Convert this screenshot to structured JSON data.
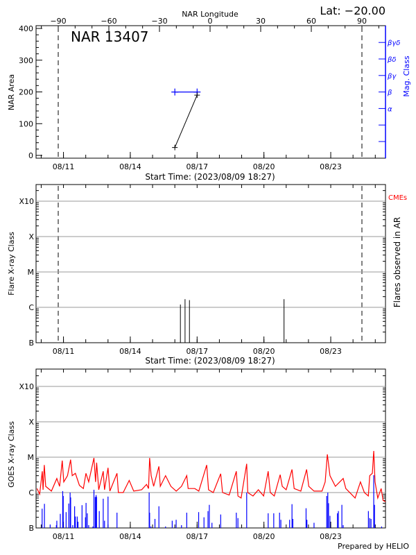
{
  "colors": {
    "axes": "#000000",
    "mag_class": "#0000ff",
    "goes_long": "#ff0000",
    "goes_short": "#0000ff",
    "grid": "#999999",
    "cmes": "#ff0000"
  },
  "header": {
    "latitude_label": "Lat: −20.00",
    "region_label": "NAR 13407"
  },
  "footer": {
    "credit": "Prepared by HELIO"
  },
  "chart_data": [
    {
      "type": "line",
      "id": "nar-area",
      "top_axis_label": "NAR Longitude",
      "top_ticks": [
        -90,
        -60,
        -30,
        0,
        30,
        60,
        90
      ],
      "top_tick_labels": [
        "−90",
        "−60",
        "−30",
        "0",
        "30",
        "60",
        "90"
      ],
      "limb_longitudes": [
        -90,
        90
      ],
      "limb_times": [
        "2023-08-10 19:30",
        "2023-08-24 10:00"
      ],
      "ylabel": "NAR Area",
      "ylim": [
        0,
        400
      ],
      "yticks": [
        0,
        100,
        200,
        300,
        400
      ],
      "ytick_labels": [
        "0",
        "100",
        "200",
        "300",
        "400"
      ],
      "right_axis_label": "Mag. Class",
      "mag_classes": [
        "",
        "",
        "α",
        "β",
        "βγ",
        "βδ",
        "βγδ"
      ],
      "xlabel": "Start Time: (2023/08/09 18:27)",
      "xlim": [
        "2023-08-09 18:27",
        "2023-08-25 11:00"
      ],
      "xticks": [
        "2023-08-11 00:00",
        "2023-08-14 00:00",
        "2023-08-17 00:00",
        "2023-08-20 00:00",
        "2023-08-23 00:00"
      ],
      "xtick_labels": [
        "08/11",
        "08/14",
        "08/17",
        "08/20",
        "08/23"
      ],
      "area_series": [
        {
          "t": "2023-08-16 00:00",
          "area": 25
        },
        {
          "t": "2023-08-17 00:00",
          "area": 190
        }
      ],
      "mag_series": [
        {
          "t": "2023-08-16 00:00",
          "class": "β"
        },
        {
          "t": "2023-08-17 00:00",
          "class": "β"
        }
      ]
    },
    {
      "type": "bar",
      "id": "flares",
      "ylabel": "Flare X-ray Class",
      "right_axis_label": "Flares observed in AR",
      "cme_label": "CMEs",
      "yscale": "log",
      "ylim": [
        1e-07,
        0.002
      ],
      "yticks": [
        1e-07,
        1e-06,
        1e-05,
        0.0001,
        0.001
      ],
      "ytick_labels": [
        "B",
        "C",
        "M",
        "X",
        "X10"
      ],
      "grid": true,
      "xlabel": "Start Time: (2023/08/09 18:27)",
      "xtick_labels": [
        "08/11",
        "08/14",
        "08/17",
        "08/20",
        "08/23"
      ],
      "flares": [
        {
          "t": "2023-08-16 06:00",
          "class": "C1.2",
          "flux": 1.2e-06
        },
        {
          "t": "2023-08-16 11:00",
          "class": "C1.7",
          "flux": 1.7e-06
        },
        {
          "t": "2023-08-16 15:45",
          "class": "C1.6",
          "flux": 1.6e-06
        },
        {
          "t": "2023-08-20 21:40",
          "class": "C1.7",
          "flux": 1.7e-06
        }
      ]
    },
    {
      "type": "line",
      "id": "goes",
      "ylabel": "GOES X-ray Class",
      "yscale": "log",
      "ylim": [
        1e-07,
        0.002
      ],
      "yticks": [
        1e-07,
        1e-06,
        1e-05,
        0.0001,
        0.001
      ],
      "ytick_labels": [
        "B",
        "C",
        "M",
        "X",
        "X10"
      ],
      "grid": true,
      "xtick_labels": [
        "08/11",
        "08/14",
        "08/17",
        "08/20",
        "08/23"
      ],
      "long_channel": [
        [
          "2023-08-09 19:30",
          1.3e-06
        ],
        [
          "2023-08-09 22:20",
          9e-07
        ],
        [
          "2023-08-10 01:10",
          4e-06
        ],
        [
          "2023-08-10 02:00",
          1.2e-06
        ],
        [
          "2023-08-10 03:20",
          6e-06
        ],
        [
          "2023-08-10 04:50",
          1.5e-06
        ],
        [
          "2023-08-10 11:00",
          1.1e-06
        ],
        [
          "2023-08-10 16:50",
          2.5e-06
        ],
        [
          "2023-08-10 19:50",
          1.5e-06
        ],
        [
          "2023-08-10 22:40",
          8e-06
        ],
        [
          "2023-08-11 00:20",
          2e-06
        ],
        [
          "2023-08-11 04:20",
          3e-06
        ],
        [
          "2023-08-11 07:40",
          8.5e-06
        ],
        [
          "2023-08-11 09:25",
          3e-06
        ],
        [
          "2023-08-11 12:50",
          3.5e-06
        ],
        [
          "2023-08-11 17:10",
          1.6e-06
        ],
        [
          "2023-08-11 21:25",
          1.3e-06
        ],
        [
          "2023-08-12 00:15",
          3.5e-06
        ],
        [
          "2023-08-12 03:10",
          2e-06
        ],
        [
          "2023-08-12 08:50",
          9.5e-06
        ],
        [
          "2023-08-12 10:35",
          2e-06
        ],
        [
          "2023-08-12 11:45",
          7e-06
        ],
        [
          "2023-08-12 14:00",
          1.2e-06
        ],
        [
          "2023-08-12 18:50",
          4e-06
        ],
        [
          "2023-08-12 20:15",
          1.2e-06
        ],
        [
          "2023-08-13 00:00",
          5e-06
        ],
        [
          "2023-08-13 02:00",
          1.1e-06
        ],
        [
          "2023-08-13 09:40",
          3.5e-06
        ],
        [
          "2023-08-13 11:10",
          1e-06
        ],
        [
          "2023-08-13 16:20",
          1e-06
        ],
        [
          "2023-08-13 22:50",
          2.2e-06
        ],
        [
          "2023-08-14 03:40",
          1.1e-06
        ],
        [
          "2023-08-14 12:15",
          1.2e-06
        ],
        [
          "2023-08-14 17:30",
          1.7e-06
        ],
        [
          "2023-08-14 19:40",
          1.3e-06
        ],
        [
          "2023-08-14 20:50",
          9.5e-06
        ],
        [
          "2023-08-14 22:30",
          3e-06
        ],
        [
          "2023-08-15 01:10",
          1.5e-06
        ],
        [
          "2023-08-15 06:50",
          5.5e-06
        ],
        [
          "2023-08-15 08:20",
          1.5e-06
        ],
        [
          "2023-08-15 14:00",
          3e-06
        ],
        [
          "2023-08-15 19:45",
          1.5e-06
        ],
        [
          "2023-08-16 01:30",
          1.1e-06
        ],
        [
          "2023-08-16 07:10",
          1.5e-06
        ],
        [
          "2023-08-16 12:50",
          3e-06
        ],
        [
          "2023-08-16 14:20",
          1.3e-06
        ],
        [
          "2023-08-16 21:30",
          1.3e-06
        ],
        [
          "2023-08-17 01:50",
          1.1e-06
        ],
        [
          "2023-08-17 10:20",
          6e-06
        ],
        [
          "2023-08-17 12:20",
          1.2e-06
        ],
        [
          "2023-08-17 17:25",
          1e-06
        ],
        [
          "2023-08-18 01:25",
          3.4e-06
        ],
        [
          "2023-08-18 03:25",
          1e-06
        ],
        [
          "2023-08-18 10:35",
          8.5e-07
        ],
        [
          "2023-08-18 18:15",
          4e-06
        ],
        [
          "2023-08-18 20:00",
          8e-07
        ],
        [
          "2023-08-18 23:25",
          7e-07
        ],
        [
          "2023-08-19 05:25",
          6.5e-06
        ],
        [
          "2023-08-19 06:35",
          1e-06
        ],
        [
          "2023-08-19 12:15",
          8e-07
        ],
        [
          "2023-08-19 18:00",
          1.2e-06
        ],
        [
          "2023-08-19 23:40",
          8e-07
        ],
        [
          "2023-08-20 04:35",
          4e-06
        ],
        [
          "2023-08-20 06:50",
          1e-06
        ],
        [
          "2023-08-20 11:10",
          8e-07
        ],
        [
          "2023-08-20 17:30",
          3.2e-06
        ],
        [
          "2023-08-20 19:45",
          1.5e-06
        ],
        [
          "2023-08-21 00:00",
          1.2e-06
        ],
        [
          "2023-08-21 06:15",
          4.5e-06
        ],
        [
          "2023-08-21 08:35",
          1.3e-06
        ],
        [
          "2023-08-21 15:45",
          1.1e-06
        ],
        [
          "2023-08-21 22:00",
          4.5e-06
        ],
        [
          "2023-08-22 00:20",
          1.5e-06
        ],
        [
          "2023-08-22 06:00",
          1.1e-06
        ],
        [
          "2023-08-22 14:35",
          1.1e-06
        ],
        [
          "2023-08-22 18:00",
          2e-06
        ],
        [
          "2023-08-22 20:20",
          1.2e-05
        ],
        [
          "2023-08-22 23:10",
          3e-06
        ],
        [
          "2023-08-23 05:00",
          1.5e-06
        ],
        [
          "2023-08-23 13:25",
          2.5e-06
        ],
        [
          "2023-08-23 16:15",
          1.3e-06
        ],
        [
          "2023-08-24 02:15",
          7e-07
        ],
        [
          "2023-08-24 08:00",
          2e-06
        ],
        [
          "2023-08-24 12:15",
          1e-06
        ],
        [
          "2023-08-24 16:30",
          8e-07
        ],
        [
          "2023-08-24 18:00",
          3e-06
        ],
        [
          "2023-08-24 20:50",
          3.5e-06
        ],
        [
          "2023-08-24 22:20",
          1.5e-05
        ],
        [
          "2023-08-24 23:45",
          2e-06
        ],
        [
          "2023-08-25 02:40",
          7e-07
        ],
        [
          "2023-08-25 06:20",
          1.3e-06
        ],
        [
          "2023-08-25 08:25",
          6e-07
        ],
        [
          "2023-08-25 11:00",
          5.5e-07
        ]
      ],
      "short_channel_peaks": [
        [
          "2023-08-10 01:00",
          3.5e-07
        ],
        [
          "2023-08-10 03:30",
          4.8e-07
        ],
        [
          "2023-08-10 09:40",
          1.25e-07
        ],
        [
          "2023-08-10 16:20",
          1.2e-07
        ],
        [
          "2023-08-10 16:50",
          1.6e-07
        ],
        [
          "2023-08-10 20:35",
          2.5e-07
        ],
        [
          "2023-08-10 23:10",
          1.1e-06
        ],
        [
          "2023-08-10 23:45",
          8e-07
        ],
        [
          "2023-08-11 02:50",
          2.8e-07
        ],
        [
          "2023-08-11 05:40",
          4.9e-07
        ],
        [
          "2023-08-11 07:10",
          1e-06
        ],
        [
          "2023-08-11 07:45",
          7.3e-07
        ],
        [
          "2023-08-11 10:00",
          1.2e-07
        ],
        [
          "2023-08-11 12:00",
          4.1e-07
        ],
        [
          "2023-08-11 12:50",
          2.1e-07
        ],
        [
          "2023-08-11 14:50",
          2.1e-07
        ],
        [
          "2023-08-11 15:40",
          1.5e-07
        ],
        [
          "2023-08-11 20:00",
          4.4e-07
        ],
        [
          "2023-08-11 23:40",
          2e-07
        ],
        [
          "2023-08-12 00:20",
          5.1e-07
        ],
        [
          "2023-08-12 01:40",
          2.6e-07
        ],
        [
          "2023-08-12 03:10",
          1.2e-07
        ],
        [
          "2023-08-12 07:40",
          1.1e-07
        ],
        [
          "2023-08-12 08:50",
          1.2e-06
        ],
        [
          "2023-08-12 10:15",
          7.5e-07
        ],
        [
          "2023-08-12 11:10",
          8.5e-07
        ],
        [
          "2023-08-12 11:40",
          7.5e-07
        ],
        [
          "2023-08-12 14:35",
          3e-07
        ],
        [
          "2023-08-12 18:50",
          6.7e-07
        ],
        [
          "2023-08-12 20:15",
          1.6e-07
        ],
        [
          "2023-08-13 00:00",
          7.7e-07
        ],
        [
          "2023-08-13 09:40",
          2.7e-07
        ],
        [
          "2023-08-14 20:20",
          1e-06
        ],
        [
          "2023-08-14 20:50",
          2.7e-07
        ],
        [
          "2023-08-14 22:15",
          1.1e-07
        ],
        [
          "2023-08-15 02:35",
          1.8e-07
        ],
        [
          "2023-08-15 06:50",
          4.1e-07
        ],
        [
          "2023-08-15 14:00",
          1.1e-07
        ],
        [
          "2023-08-15 21:10",
          1.6e-07
        ],
        [
          "2023-08-16 01:25",
          1.7e-07
        ],
        [
          "2023-08-16 07:10",
          1.2e-07
        ],
        [
          "2023-08-16 12:50",
          2.7e-07
        ],
        [
          "2023-08-17 01:40",
          2.8e-07
        ],
        [
          "2023-08-17 07:25",
          2e-07
        ],
        [
          "2023-08-17 11:45",
          3e-07
        ],
        [
          "2023-08-17 13:10",
          4.5e-07
        ],
        [
          "2023-08-17 16:00",
          1.4e-07
        ],
        [
          "2023-08-18 01:25",
          2.4e-07
        ],
        [
          "2023-08-18 18:15",
          2.7e-07
        ],
        [
          "2023-08-18 20:00",
          1.9e-07
        ],
        [
          "2023-08-19 05:25",
          1e-06
        ],
        [
          "2023-08-20 04:35",
          2.6e-07
        ],
        [
          "2023-08-20 10:35",
          2.6e-07
        ],
        [
          "2023-08-20 16:50",
          2.7e-07
        ],
        [
          "2023-08-20 18:15",
          1.7e-07
        ],
        [
          "2023-08-21 03:40",
          1.7e-07
        ],
        [
          "2023-08-21 06:15",
          4.7e-07
        ],
        [
          "2023-08-21 07:10",
          1.8e-07
        ],
        [
          "2023-08-21 21:25",
          3.6e-07
        ],
        [
          "2023-08-21 22:20",
          1.7e-07
        ],
        [
          "2023-08-22 06:00",
          1.4e-07
        ],
        [
          "2023-08-22 19:40",
          8e-07
        ],
        [
          "2023-08-22 20:50",
          1e-06
        ],
        [
          "2023-08-22 21:40",
          5e-07
        ],
        [
          "2023-08-22 23:10",
          2.2e-07
        ],
        [
          "2023-08-23 07:10",
          2.6e-07
        ],
        [
          "2023-08-23 08:15",
          3e-07
        ],
        [
          "2023-08-23 12:00",
          4.5e-07
        ],
        [
          "2023-08-23 13:25",
          1.2e-07
        ],
        [
          "2023-08-24 16:35",
          3e-07
        ],
        [
          "2023-08-24 18:00",
          1.9e-07
        ],
        [
          "2023-08-24 19:25",
          1.8e-07
        ],
        [
          "2023-08-24 22:20",
          3.1e-06
        ],
        [
          "2023-08-24 23:10",
          4.5e-07
        ],
        [
          "2023-08-25 06:50",
          1.1e-07
        ]
      ]
    }
  ]
}
